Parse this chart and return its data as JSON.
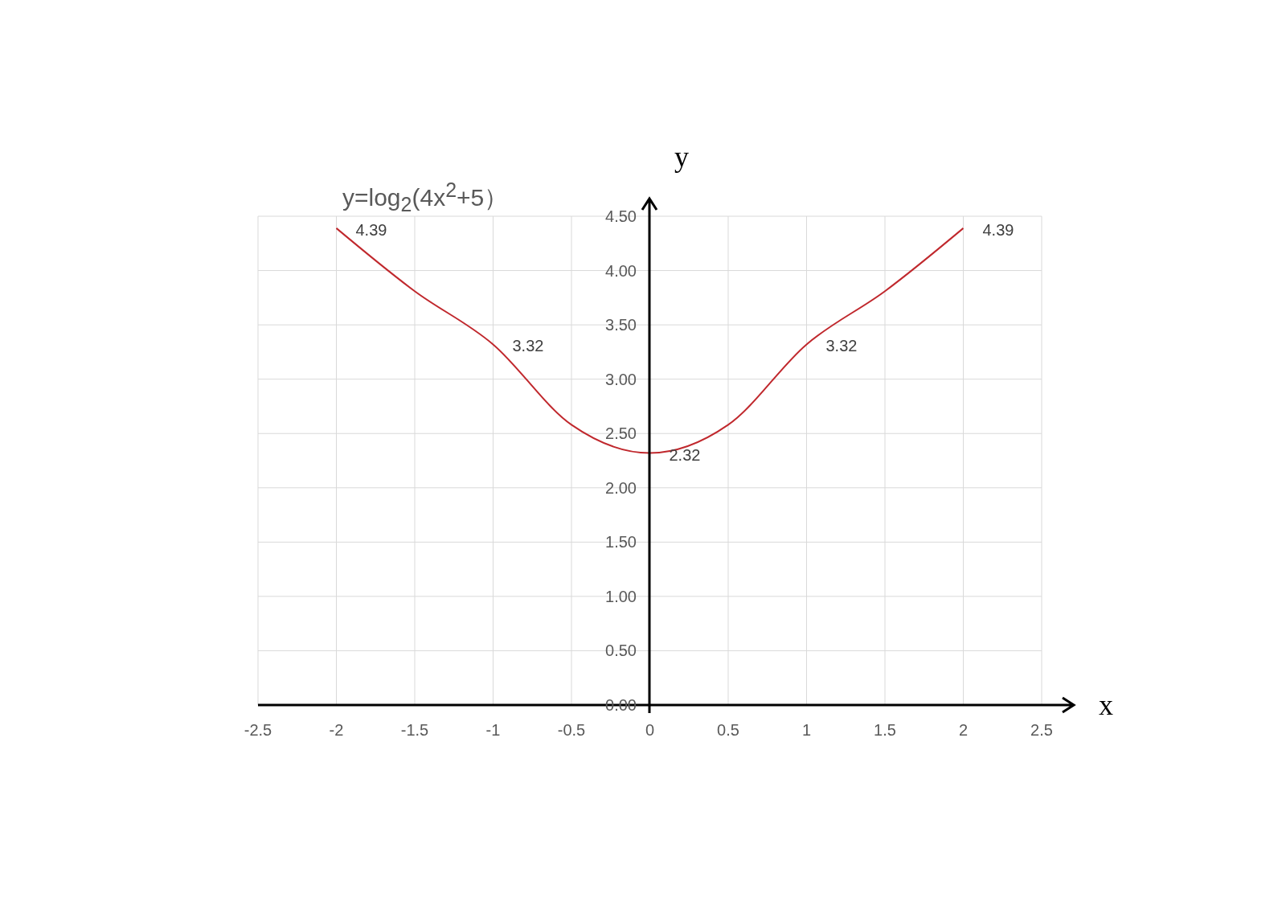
{
  "chart_data": {
    "type": "line",
    "title": "y=log$_{2}$(4x$^{2}$+5）",
    "xlabel": "x",
    "ylabel": "y",
    "x": [
      -2,
      -1.5,
      -1,
      -0.5,
      0,
      0.5,
      1,
      1.5,
      2
    ],
    "series": [
      {
        "color": "#c0282d",
        "values": [
          4.39,
          3.81,
          3.32,
          2.58,
          2.32,
          2.58,
          3.32,
          3.81,
          4.39
        ],
        "value_labels": [
          "4.39",
          null,
          "3.32",
          null,
          "2.32",
          null,
          "3.32",
          null,
          "4.39"
        ]
      }
    ],
    "xlim": [
      -2.5,
      2.5
    ],
    "xticks": [
      -2.5,
      -2,
      -1.5,
      -1,
      -0.5,
      0,
      0.5,
      1,
      1.5,
      2,
      2.5
    ],
    "ylim": [
      0,
      4.5
    ],
    "yticks": [
      {
        "value": 0,
        "label": "0.00"
      },
      {
        "value": 0.5,
        "label": "0.50"
      },
      {
        "value": 1,
        "label": "1.00"
      },
      {
        "value": 1.5,
        "label": "1.50"
      },
      {
        "value": 2,
        "label": "2.00"
      },
      {
        "value": 2.5,
        "label": "2.50"
      },
      {
        "value": 3,
        "label": "3.00"
      },
      {
        "value": 3.5,
        "label": "3.50"
      },
      {
        "value": 4,
        "label": "4.00"
      },
      {
        "value": 4.5,
        "label": "4.50"
      }
    ],
    "grid": true,
    "marker": "none",
    "line_style": "solid"
  }
}
